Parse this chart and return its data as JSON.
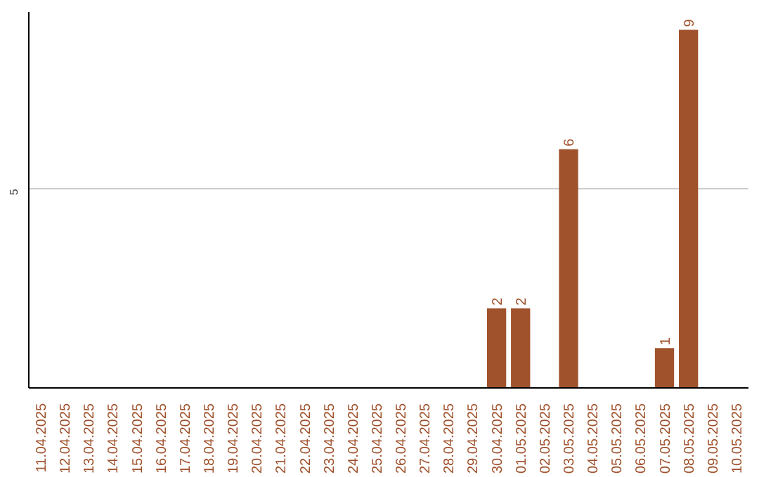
{
  "chart_data": {
    "type": "bar",
    "categories": [
      "11.04.2025",
      "12.04.2025",
      "13.04.2025",
      "14.04.2025",
      "15.04.2025",
      "16.04.2025",
      "17.04.2025",
      "18.04.2025",
      "19.04.2025",
      "20.04.2025",
      "21.04.2025",
      "22.04.2025",
      "23.04.2025",
      "24.04.2025",
      "25.04.2025",
      "26.04.2025",
      "27.04.2025",
      "28.04.2025",
      "29.04.2025",
      "30.04.2025",
      "01.05.2025",
      "02.05.2025",
      "03.05.2025",
      "04.05.2025",
      "05.05.2025",
      "06.05.2025",
      "07.05.2025",
      "08.05.2025",
      "09.05.2025",
      "10.05.2025"
    ],
    "values": [
      null,
      null,
      null,
      null,
      null,
      null,
      null,
      null,
      null,
      null,
      null,
      null,
      null,
      null,
      null,
      null,
      null,
      null,
      null,
      2,
      2,
      null,
      6,
      null,
      null,
      null,
      1,
      9,
      null,
      null
    ],
    "value_labels": [
      null,
      null,
      null,
      null,
      null,
      null,
      null,
      null,
      null,
      null,
      null,
      null,
      null,
      null,
      null,
      null,
      null,
      null,
      null,
      "2",
      "2",
      null,
      "6",
      null,
      null,
      null,
      "1",
      "9",
      null,
      null
    ],
    "color": "#a0522d",
    "ylim": [
      0,
      9.45
    ],
    "yticks": [
      5
    ],
    "grid": "y"
  }
}
